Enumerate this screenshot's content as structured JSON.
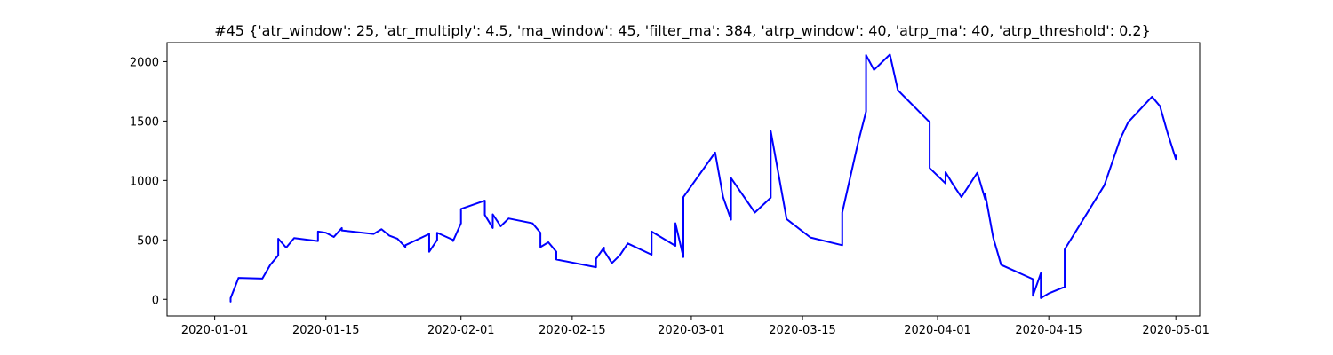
{
  "chart_data": {
    "type": "line",
    "title": "#45 {'atr_window': 25, 'atr_multiply': 4.5, 'ma_window': 45, 'filter_ma': 384, 'atrp_window': 40, 'atrp_ma': 40, 'atrp_threshold': 0.2}",
    "xlabel": "",
    "ylabel": "",
    "grid": false,
    "legend": "none",
    "x_type": "date",
    "xlim": [
      "2019-12-26",
      "2020-05-04"
    ],
    "ylim": [
      -140,
      2160
    ],
    "x_ticks": [
      "2020-01-01",
      "2020-01-15",
      "2020-02-01",
      "2020-02-15",
      "2020-03-01",
      "2020-03-15",
      "2020-04-01",
      "2020-04-15",
      "2020-05-01"
    ],
    "x_tick_labels": [
      "2020-01-01",
      "2020-01-15",
      "2020-02-01",
      "2020-02-15",
      "2020-03-01",
      "2020-03-15",
      "2020-04-01",
      "2020-04-15",
      "2020-05-01"
    ],
    "y_ticks": [
      0,
      500,
      1000,
      1500,
      2000
    ],
    "y_tick_labels": [
      "0",
      "500",
      "1000",
      "1500",
      "2000"
    ],
    "series": [
      {
        "color": "#0000ff",
        "x": [
          "2020-01-03",
          "2020-01-03",
          "2020-01-03",
          "2020-01-04",
          "2020-01-07",
          "2020-01-08",
          "2020-01-09",
          "2020-01-09",
          "2020-01-10",
          "2020-01-11",
          "2020-01-14",
          "2020-01-14",
          "2020-01-15",
          "2020-01-16",
          "2020-01-17",
          "2020-01-17",
          "2020-01-21",
          "2020-01-22",
          "2020-01-23",
          "2020-01-24",
          "2020-01-25",
          "2020-01-25",
          "2020-01-28",
          "2020-01-28",
          "2020-01-29",
          "2020-01-29",
          "2020-01-31",
          "2020-01-31",
          "2020-02-01",
          "2020-02-01",
          "2020-02-04",
          "2020-02-04",
          "2020-02-05",
          "2020-02-05",
          "2020-02-06",
          "2020-02-07",
          "2020-02-10",
          "2020-02-11",
          "2020-02-11",
          "2020-02-12",
          "2020-02-13",
          "2020-02-13",
          "2020-02-18",
          "2020-02-18",
          "2020-02-19",
          "2020-02-19",
          "2020-02-20",
          "2020-02-21",
          "2020-02-22",
          "2020-02-25",
          "2020-02-25",
          "2020-02-28",
          "2020-02-28",
          "2020-02-29",
          "2020-02-29",
          "2020-03-04",
          "2020-03-05",
          "2020-03-06",
          "2020-03-06",
          "2020-03-09",
          "2020-03-11",
          "2020-03-11",
          "2020-03-13",
          "2020-03-16",
          "2020-03-20",
          "2020-03-20",
          "2020-03-22",
          "2020-03-23",
          "2020-03-23",
          "2020-03-24",
          "2020-03-26",
          "2020-03-27",
          "2020-03-31",
          "2020-03-31",
          "2020-04-02",
          "2020-04-02",
          "2020-04-03",
          "2020-04-04",
          "2020-04-06",
          "2020-04-07",
          "2020-04-07",
          "2020-04-08",
          "2020-04-09",
          "2020-04-13",
          "2020-04-13",
          "2020-04-14",
          "2020-04-14",
          "2020-04-15",
          "2020-04-17",
          "2020-04-17",
          "2020-04-22",
          "2020-04-24",
          "2020-04-25",
          "2020-04-28",
          "2020-04-29",
          "2020-04-30",
          "2020-05-01",
          "2020-05-01"
        ],
        "y": [
          0,
          -20,
          10,
          180,
          175,
          290,
          370,
          510,
          435,
          515,
          490,
          570,
          560,
          525,
          600,
          580,
          550,
          590,
          535,
          510,
          440,
          455,
          550,
          400,
          500,
          560,
          500,
          490,
          640,
          760,
          830,
          710,
          600,
          715,
          615,
          680,
          640,
          560,
          440,
          480,
          400,
          335,
          270,
          340,
          435,
          410,
          305,
          370,
          470,
          375,
          570,
          450,
          640,
          355,
          860,
          1235,
          860,
          670,
          1020,
          730,
          855,
          1415,
          675,
          520,
          455,
          730,
          1320,
          1580,
          2055,
          1930,
          2060,
          1760,
          1490,
          1105,
          975,
          1070,
          960,
          860,
          1065,
          840,
          885,
          520,
          290,
          170,
          30,
          220,
          10,
          50,
          105,
          420,
          960,
          1350,
          1490,
          1705,
          1625,
          1390,
          1180,
          1210
        ]
      }
    ]
  }
}
